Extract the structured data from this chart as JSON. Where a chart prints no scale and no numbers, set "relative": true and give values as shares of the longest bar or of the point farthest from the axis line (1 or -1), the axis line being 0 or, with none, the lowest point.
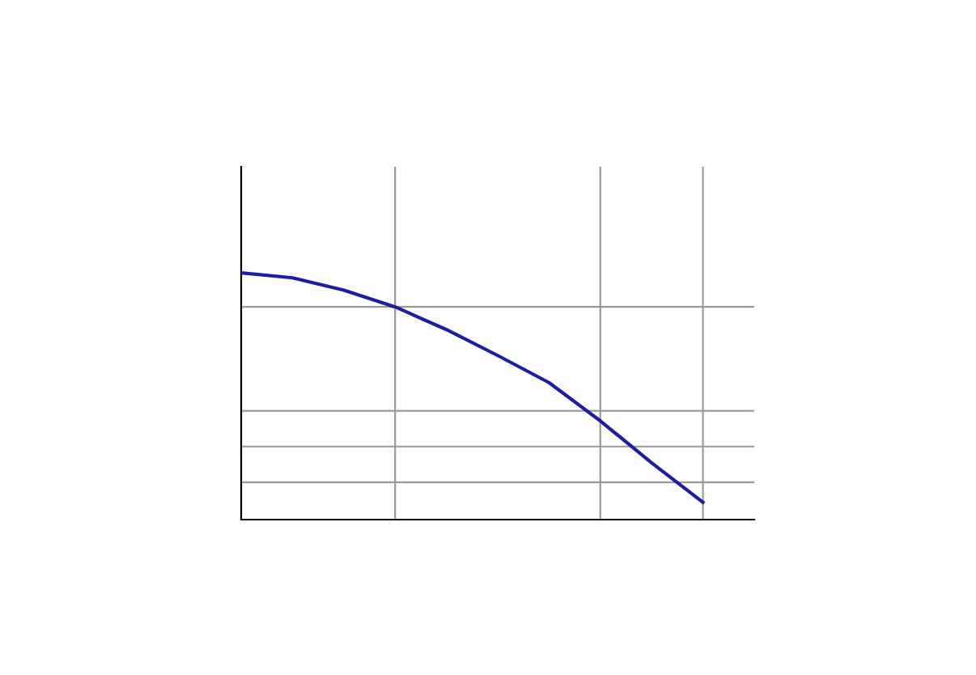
{
  "chart_data": {
    "type": "line",
    "relative": true,
    "categories": [
      null,
      null,
      null,
      null,
      null,
      null,
      null,
      null,
      null,
      null,
      null
    ],
    "series": [
      {
        "color": "#1c1ca8",
        "values": [
          1.0,
          0.98,
          0.93,
          0.862,
          0.77,
          0.665,
          0.555,
          0.4,
          0.23,
          0.07,
          null
        ]
      }
    ],
    "ref_lines": [
      {
        "axis": "y",
        "value": 0.862,
        "color": "#999999"
      },
      {
        "axis": "y",
        "value": 0.441,
        "color": "#999999"
      },
      {
        "axis": "y",
        "value": 0.296,
        "color": "#999999"
      },
      {
        "axis": "y",
        "value": 0.151,
        "color": "#999999"
      }
    ],
    "grid": "x",
    "marker": "none",
    "line_style": "solid"
  }
}
